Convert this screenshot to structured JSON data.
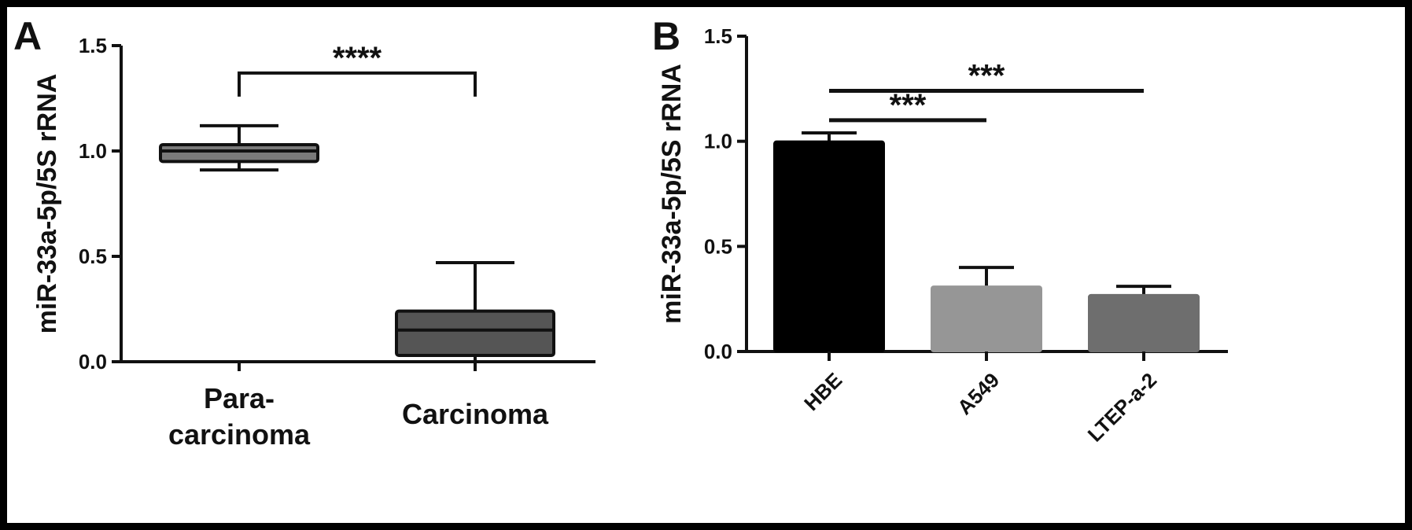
{
  "chart_data": [
    {
      "panel_label": "A",
      "type": "box",
      "ylabel": "miR-33a-5p/5S rRNA",
      "ylim": [
        0,
        1.5
      ],
      "yticks": [
        "0.0",
        "0.5",
        "1.0",
        "1.5"
      ],
      "categories": [
        "Para-\ncarcinoma",
        "Carcinoma"
      ],
      "boxes": [
        {
          "category": "Para-carcinoma",
          "whisker_low": 0.91,
          "q1": 0.95,
          "median": 1.0,
          "q3": 1.03,
          "whisker_high": 1.12,
          "fill": "#7a7a7a"
        },
        {
          "category": "Carcinoma",
          "whisker_low": 0.0,
          "q1": 0.03,
          "median": 0.15,
          "q3": 0.24,
          "whisker_high": 0.47,
          "fill": "#555555"
        }
      ],
      "significance": [
        {
          "from": "Para-carcinoma",
          "to": "Carcinoma",
          "label": "****",
          "y": 1.37
        }
      ]
    },
    {
      "panel_label": "B",
      "type": "bar",
      "ylabel": "miR-33a-5p/5S rRNA",
      "ylim": [
        0,
        1.5
      ],
      "yticks": [
        "0.0",
        "0.5",
        "1.0",
        "1.5"
      ],
      "categories": [
        "HBE",
        "A549",
        "LTEP-a-2"
      ],
      "values": [
        1.0,
        0.31,
        0.27
      ],
      "errors": [
        0.04,
        0.09,
        0.04
      ],
      "colors": [
        "#000000",
        "#969696",
        "#6e6e6e"
      ],
      "significance": [
        {
          "from": "HBE",
          "to": "A549",
          "label": "***",
          "y": 1.1
        },
        {
          "from": "HBE",
          "to": "LTEP-a-2",
          "label": "***",
          "y": 1.24
        }
      ]
    }
  ]
}
